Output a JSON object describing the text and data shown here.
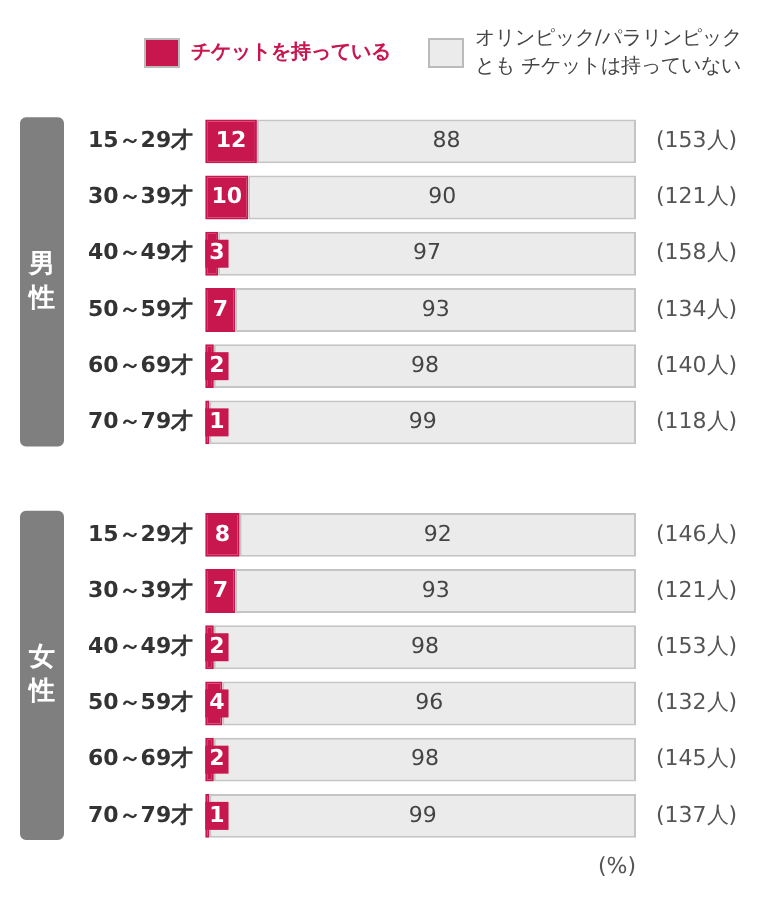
{
  "chart_data": {
    "type": "bar",
    "orientation": "horizontal",
    "stacked": true,
    "data_labels": true,
    "legend": "top",
    "tick_labels": "y",
    "grid": false,
    "xlim": [
      0,
      100
    ],
    "xlabel": "(%)",
    "categories": [
      "15～29才",
      "30～39才",
      "40～49才",
      "50～59才",
      "60～69才",
      "70～79才",
      null,
      "15～29才",
      "30～39才",
      "40～49才",
      "50～59才",
      "60～69才",
      "70～79才"
    ],
    "series": [
      {
        "name": "チケットを持っている",
        "color": "#c8174f",
        "values": [
          12,
          10,
          3,
          7,
          2,
          1,
          null,
          8,
          7,
          2,
          4,
          2,
          1
        ]
      },
      {
        "name": "オリンピック/パラリンピックとも チケットは持っていない",
        "color": "#ebebeb",
        "values": [
          88,
          90,
          97,
          93,
          98,
          99,
          null,
          92,
          93,
          98,
          96,
          98,
          99
        ]
      }
    ],
    "annotations": [
      "男性",
      "女性",
      "(153人)",
      "(121人)",
      "(158人)",
      "(134人)",
      "(140人)",
      "(118人)",
      "(146人)",
      "(121人)",
      "(153人)",
      "(132人)",
      "(145人)",
      "(137人)"
    ]
  }
}
